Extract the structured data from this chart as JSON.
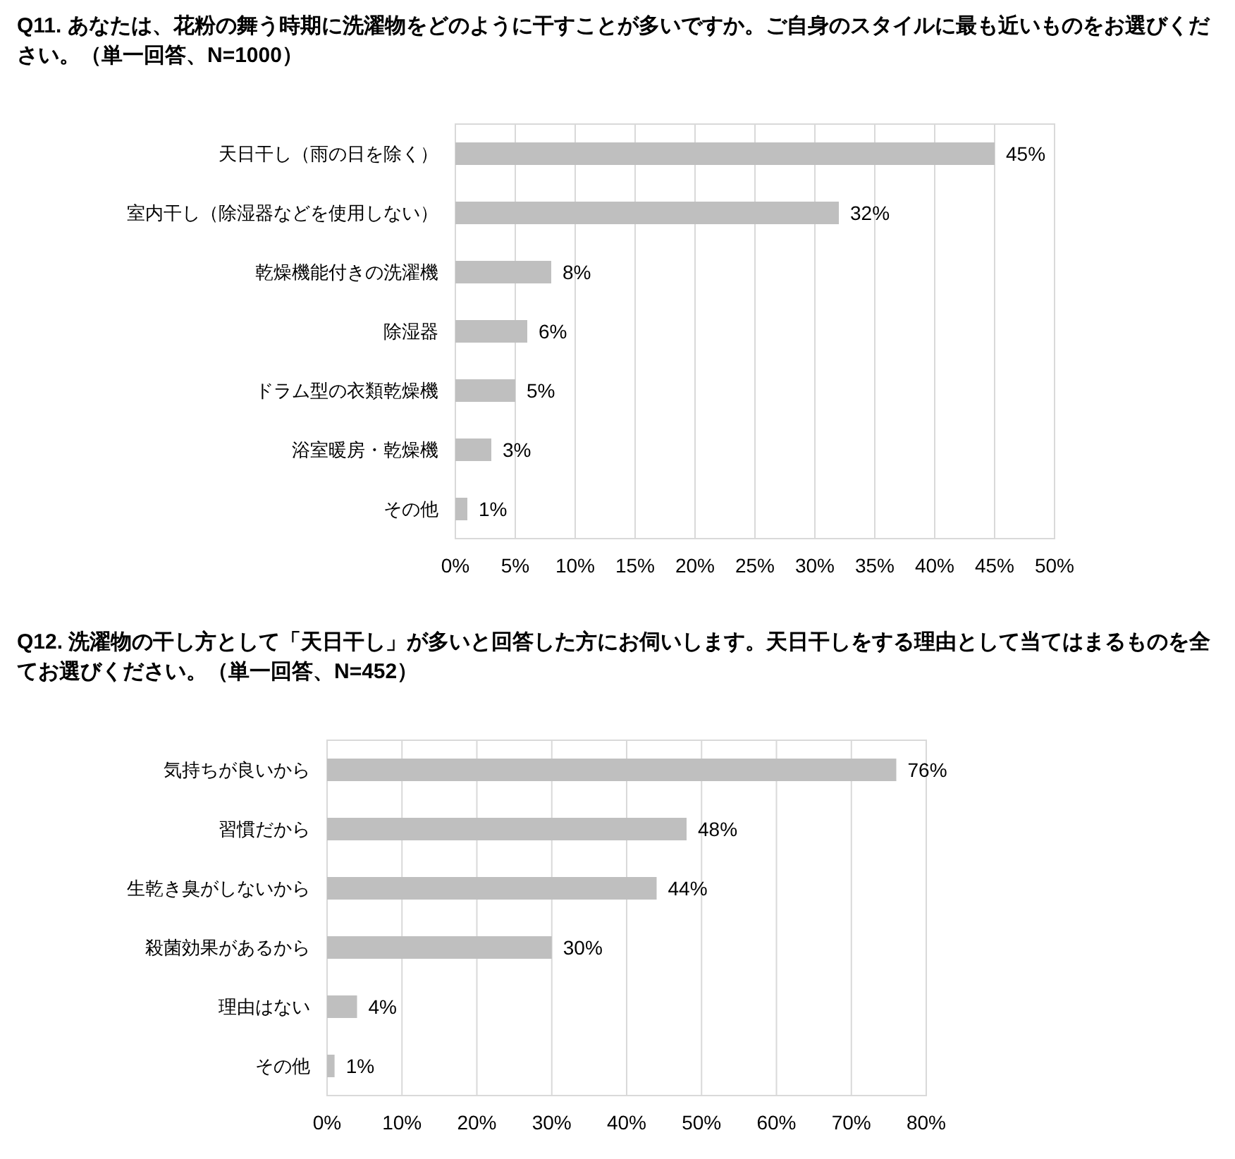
{
  "chart_data": [
    {
      "type": "bar",
      "orientation": "horizontal",
      "title": "Q11. あなたは、花粉の舞う時期に洗濯物をどのように干すことが多いですか。ご自身のスタイルに最も近いものをお選びください。（単一回答、N=1000）",
      "categories": [
        "天日干し（雨の日を除く）",
        "室内干し（除湿器などを使用しない）",
        "乾燥機能付きの洗濯機",
        "除湿器",
        "ドラム型の衣類乾燥機",
        "浴室暖房・乾燥機",
        "その他"
      ],
      "values": [
        45,
        32,
        8,
        6,
        5,
        3,
        1
      ],
      "value_labels": [
        "45%",
        "32%",
        "8%",
        "6%",
        "5%",
        "3%",
        "1%"
      ],
      "colors": [
        "#bfbfbf",
        "#bfbfbf",
        "#bfbfbf",
        "#bfbfbf",
        "#bfbfbf",
        "#bfbfbf",
        "#bfbfbf"
      ],
      "xlim": [
        0,
        50
      ],
      "xticks": [
        {
          "value": 0,
          "label": "0%"
        },
        {
          "value": 5,
          "label": "5%"
        },
        {
          "value": 10,
          "label": "10%"
        },
        {
          "value": 15,
          "label": "15%"
        },
        {
          "value": 20,
          "label": "20%"
        },
        {
          "value": 25,
          "label": "25%"
        },
        {
          "value": 30,
          "label": "30%"
        },
        {
          "value": 35,
          "label": "35%"
        },
        {
          "value": 40,
          "label": "40%"
        },
        {
          "value": 45,
          "label": "45%"
        },
        {
          "value": 50,
          "label": "50%"
        }
      ],
      "grid": "x"
    },
    {
      "type": "bar",
      "orientation": "horizontal",
      "title": "Q12. 洗濯物の干し方として「天日干し」が多いと回答した方にお伺いします。天日干しをする理由として当てはまるものを全てお選びください。（単一回答、N=452）",
      "categories": [
        "気持ちが良いから",
        "習慣だから",
        "生乾き臭がしないから",
        "殺菌効果があるから",
        "理由はない",
        "その他"
      ],
      "values": [
        76,
        48,
        44,
        30,
        4,
        1
      ],
      "value_labels": [
        "76%",
        "48%",
        "44%",
        "30%",
        "4%",
        "1%"
      ],
      "colors": [
        "#bfbfbf",
        "#bfbfbf",
        "#bfbfbf",
        "#bfbfbf",
        "#bfbfbf",
        "#bfbfbf"
      ],
      "xlim": [
        0,
        80
      ],
      "xticks": [
        {
          "value": 0,
          "label": "0%"
        },
        {
          "value": 10,
          "label": "10%"
        },
        {
          "value": 20,
          "label": "20%"
        },
        {
          "value": 30,
          "label": "30%"
        },
        {
          "value": 40,
          "label": "40%"
        },
        {
          "value": 50,
          "label": "50%"
        },
        {
          "value": 60,
          "label": "60%"
        },
        {
          "value": 70,
          "label": "70%"
        },
        {
          "value": 80,
          "label": "80%"
        }
      ],
      "grid": "x"
    }
  ]
}
